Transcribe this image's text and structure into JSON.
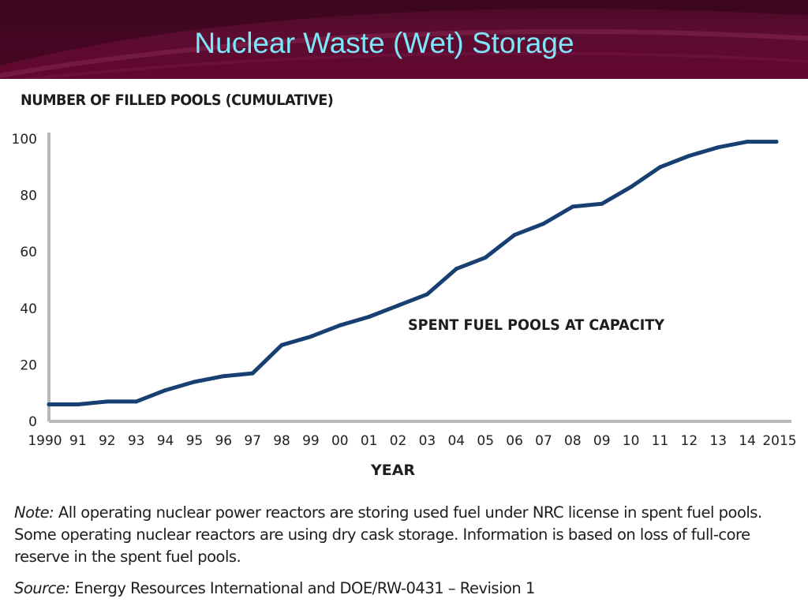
{
  "slide": {
    "title": "Nuclear Waste (Wet) Storage",
    "banner_color": "#5c0c30",
    "title_color": "#7fe6f7"
  },
  "chart_data": {
    "type": "line",
    "title": "NUMBER OF FILLED POOLS (CUMULATIVE)",
    "xlabel": "YEAR",
    "ylabel": "",
    "categories": [
      "1990",
      "91",
      "92",
      "93",
      "94",
      "95",
      "96",
      "97",
      "98",
      "99",
      "00",
      "01",
      "02",
      "03",
      "04",
      "05",
      "06",
      "07",
      "08",
      "09",
      "10",
      "11",
      "12",
      "13",
      "14",
      "2015"
    ],
    "series": [
      {
        "values": [
          6,
          6,
          7,
          7,
          11,
          14,
          16,
          17,
          27,
          30,
          34,
          37,
          41,
          45,
          54,
          58,
          66,
          70,
          76,
          77,
          83,
          90,
          94,
          97,
          99,
          99
        ],
        "color": "#173f72"
      }
    ],
    "annotation": "SPENT FUEL POOLS AT CAPACITY",
    "yticks": [
      "0",
      "20",
      "40",
      "60",
      "80",
      "100"
    ],
    "ylim": [
      0,
      100
    ],
    "grid": false,
    "legend": "none"
  },
  "note": {
    "label": "Note:",
    "text": " All operating nuclear power reactors are storing used fuel under NRC license in spent fuel pools. Some operating nuclear reactors are using dry cask storage.  Information is based on loss of full-core reserve in the spent fuel pools."
  },
  "source": {
    "label": "Source:",
    "text": "  Energy Resources International and DOE/RW-0431 – Revision 1"
  }
}
